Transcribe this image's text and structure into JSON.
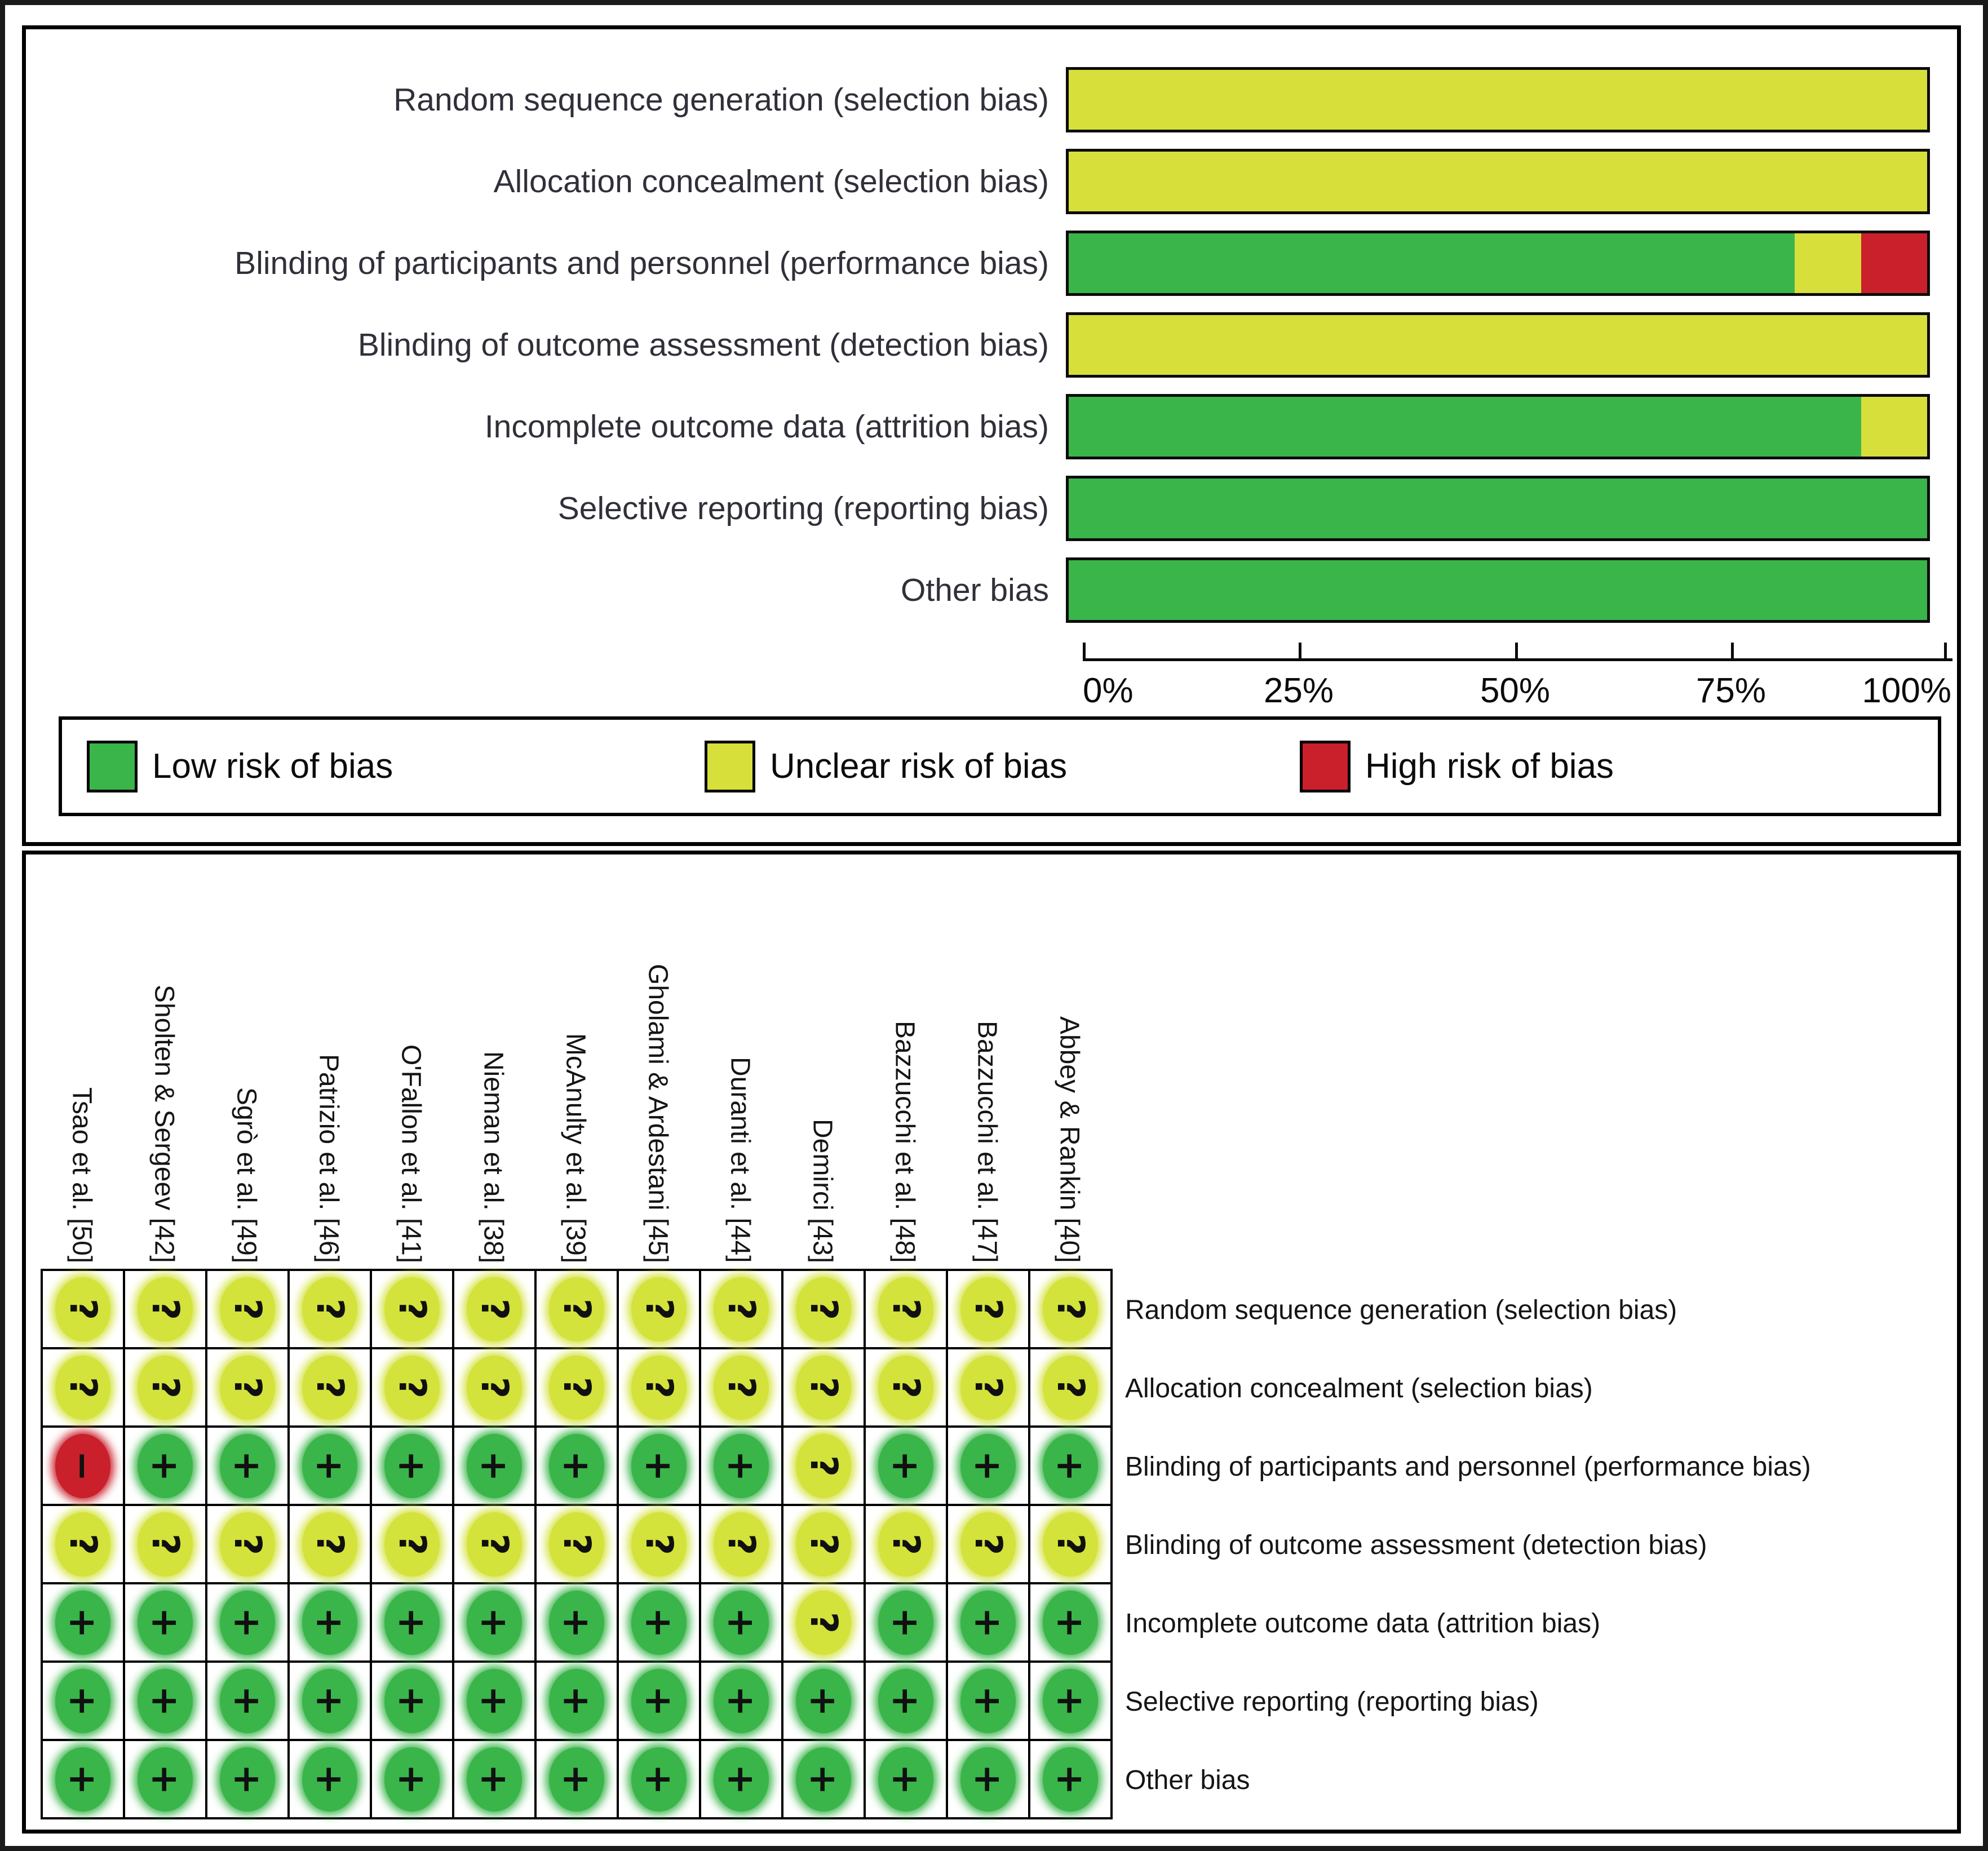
{
  "chart_data": {
    "type": "bar",
    "orientation": "horizontal-stacked",
    "title": "",
    "xlabel": "",
    "ylabel": "",
    "xlim": [
      0,
      100
    ],
    "x_ticks": [
      "0%",
      "25%",
      "50%",
      "75%",
      "100%"
    ],
    "grid": false,
    "legend_position": "bottom",
    "categories": [
      "Random sequence generation (selection bias)",
      "Allocation concealment (selection bias)",
      "Blinding of participants and personnel (performance bias)",
      "Blinding of outcome assessment (detection bias)",
      "Incomplete outcome data (attrition bias)",
      "Selective reporting (reporting bias)",
      "Other bias"
    ],
    "series": [
      {
        "name": "Low risk of bias",
        "color": "#3ab54a",
        "values": [
          0,
          0,
          84.6,
          0,
          92.3,
          100,
          100
        ]
      },
      {
        "name": "Unclear risk of bias",
        "color": "#d7df3b",
        "values": [
          100,
          100,
          7.7,
          100,
          7.7,
          0,
          0
        ]
      },
      {
        "name": "High risk of bias",
        "color": "#c9202b",
        "values": [
          0,
          0,
          7.7,
          0,
          0,
          0,
          0
        ]
      }
    ]
  },
  "legend": {
    "items": [
      {
        "label": "Low risk of bias",
        "color": "#3ab54a"
      },
      {
        "label": "Unclear risk of bias",
        "color": "#d7df3b"
      },
      {
        "label": "High risk of bias",
        "color": "#c9202b"
      }
    ]
  },
  "summary_table": {
    "studies": [
      "Tsao et al. [50]",
      "Sholten & Sergeev [42]",
      "Sgrò et al. [49]",
      "Patrizio et al. [46]",
      "O'Fallon et al. [41]",
      "Nieman et al. [38]",
      "McAnulty et al. [39]",
      "Gholami & Ardestani [45]",
      "Duranti et al. [44]",
      "Demirci [43]",
      "Bazzucchi et al. [48]",
      "Bazzucchi et al. [47]",
      "Abbey & Rankin [40]"
    ],
    "domains": [
      "Random sequence generation (selection bias)",
      "Allocation concealment (selection bias)",
      "Blinding of participants and personnel (performance bias)",
      "Blinding of outcome assessment (detection bias)",
      "Incomplete outcome data (attrition bias)",
      "Selective reporting (reporting bias)",
      "Other bias"
    ],
    "judgements": [
      [
        "U",
        "U",
        "U",
        "U",
        "U",
        "U",
        "U",
        "U",
        "U",
        "U",
        "U",
        "U",
        "U"
      ],
      [
        "U",
        "U",
        "U",
        "U",
        "U",
        "U",
        "U",
        "U",
        "U",
        "U",
        "U",
        "U",
        "U"
      ],
      [
        "H",
        "L",
        "L",
        "L",
        "L",
        "L",
        "L",
        "L",
        "L",
        "U",
        "L",
        "L",
        "L"
      ],
      [
        "U",
        "U",
        "U",
        "U",
        "U",
        "U",
        "U",
        "U",
        "U",
        "U",
        "U",
        "U",
        "U"
      ],
      [
        "L",
        "L",
        "L",
        "L",
        "L",
        "L",
        "L",
        "L",
        "L",
        "U",
        "L",
        "L",
        "L"
      ],
      [
        "L",
        "L",
        "L",
        "L",
        "L",
        "L",
        "L",
        "L",
        "L",
        "L",
        "L",
        "L",
        "L"
      ],
      [
        "L",
        "L",
        "L",
        "L",
        "L",
        "L",
        "L",
        "L",
        "L",
        "L",
        "L",
        "L",
        "L"
      ]
    ],
    "symbols": {
      "L": "+",
      "U": "?",
      "H": "−"
    },
    "colors": {
      "L": "#3ab54a",
      "U": "#d4e23c",
      "H": "#c9202b"
    }
  }
}
